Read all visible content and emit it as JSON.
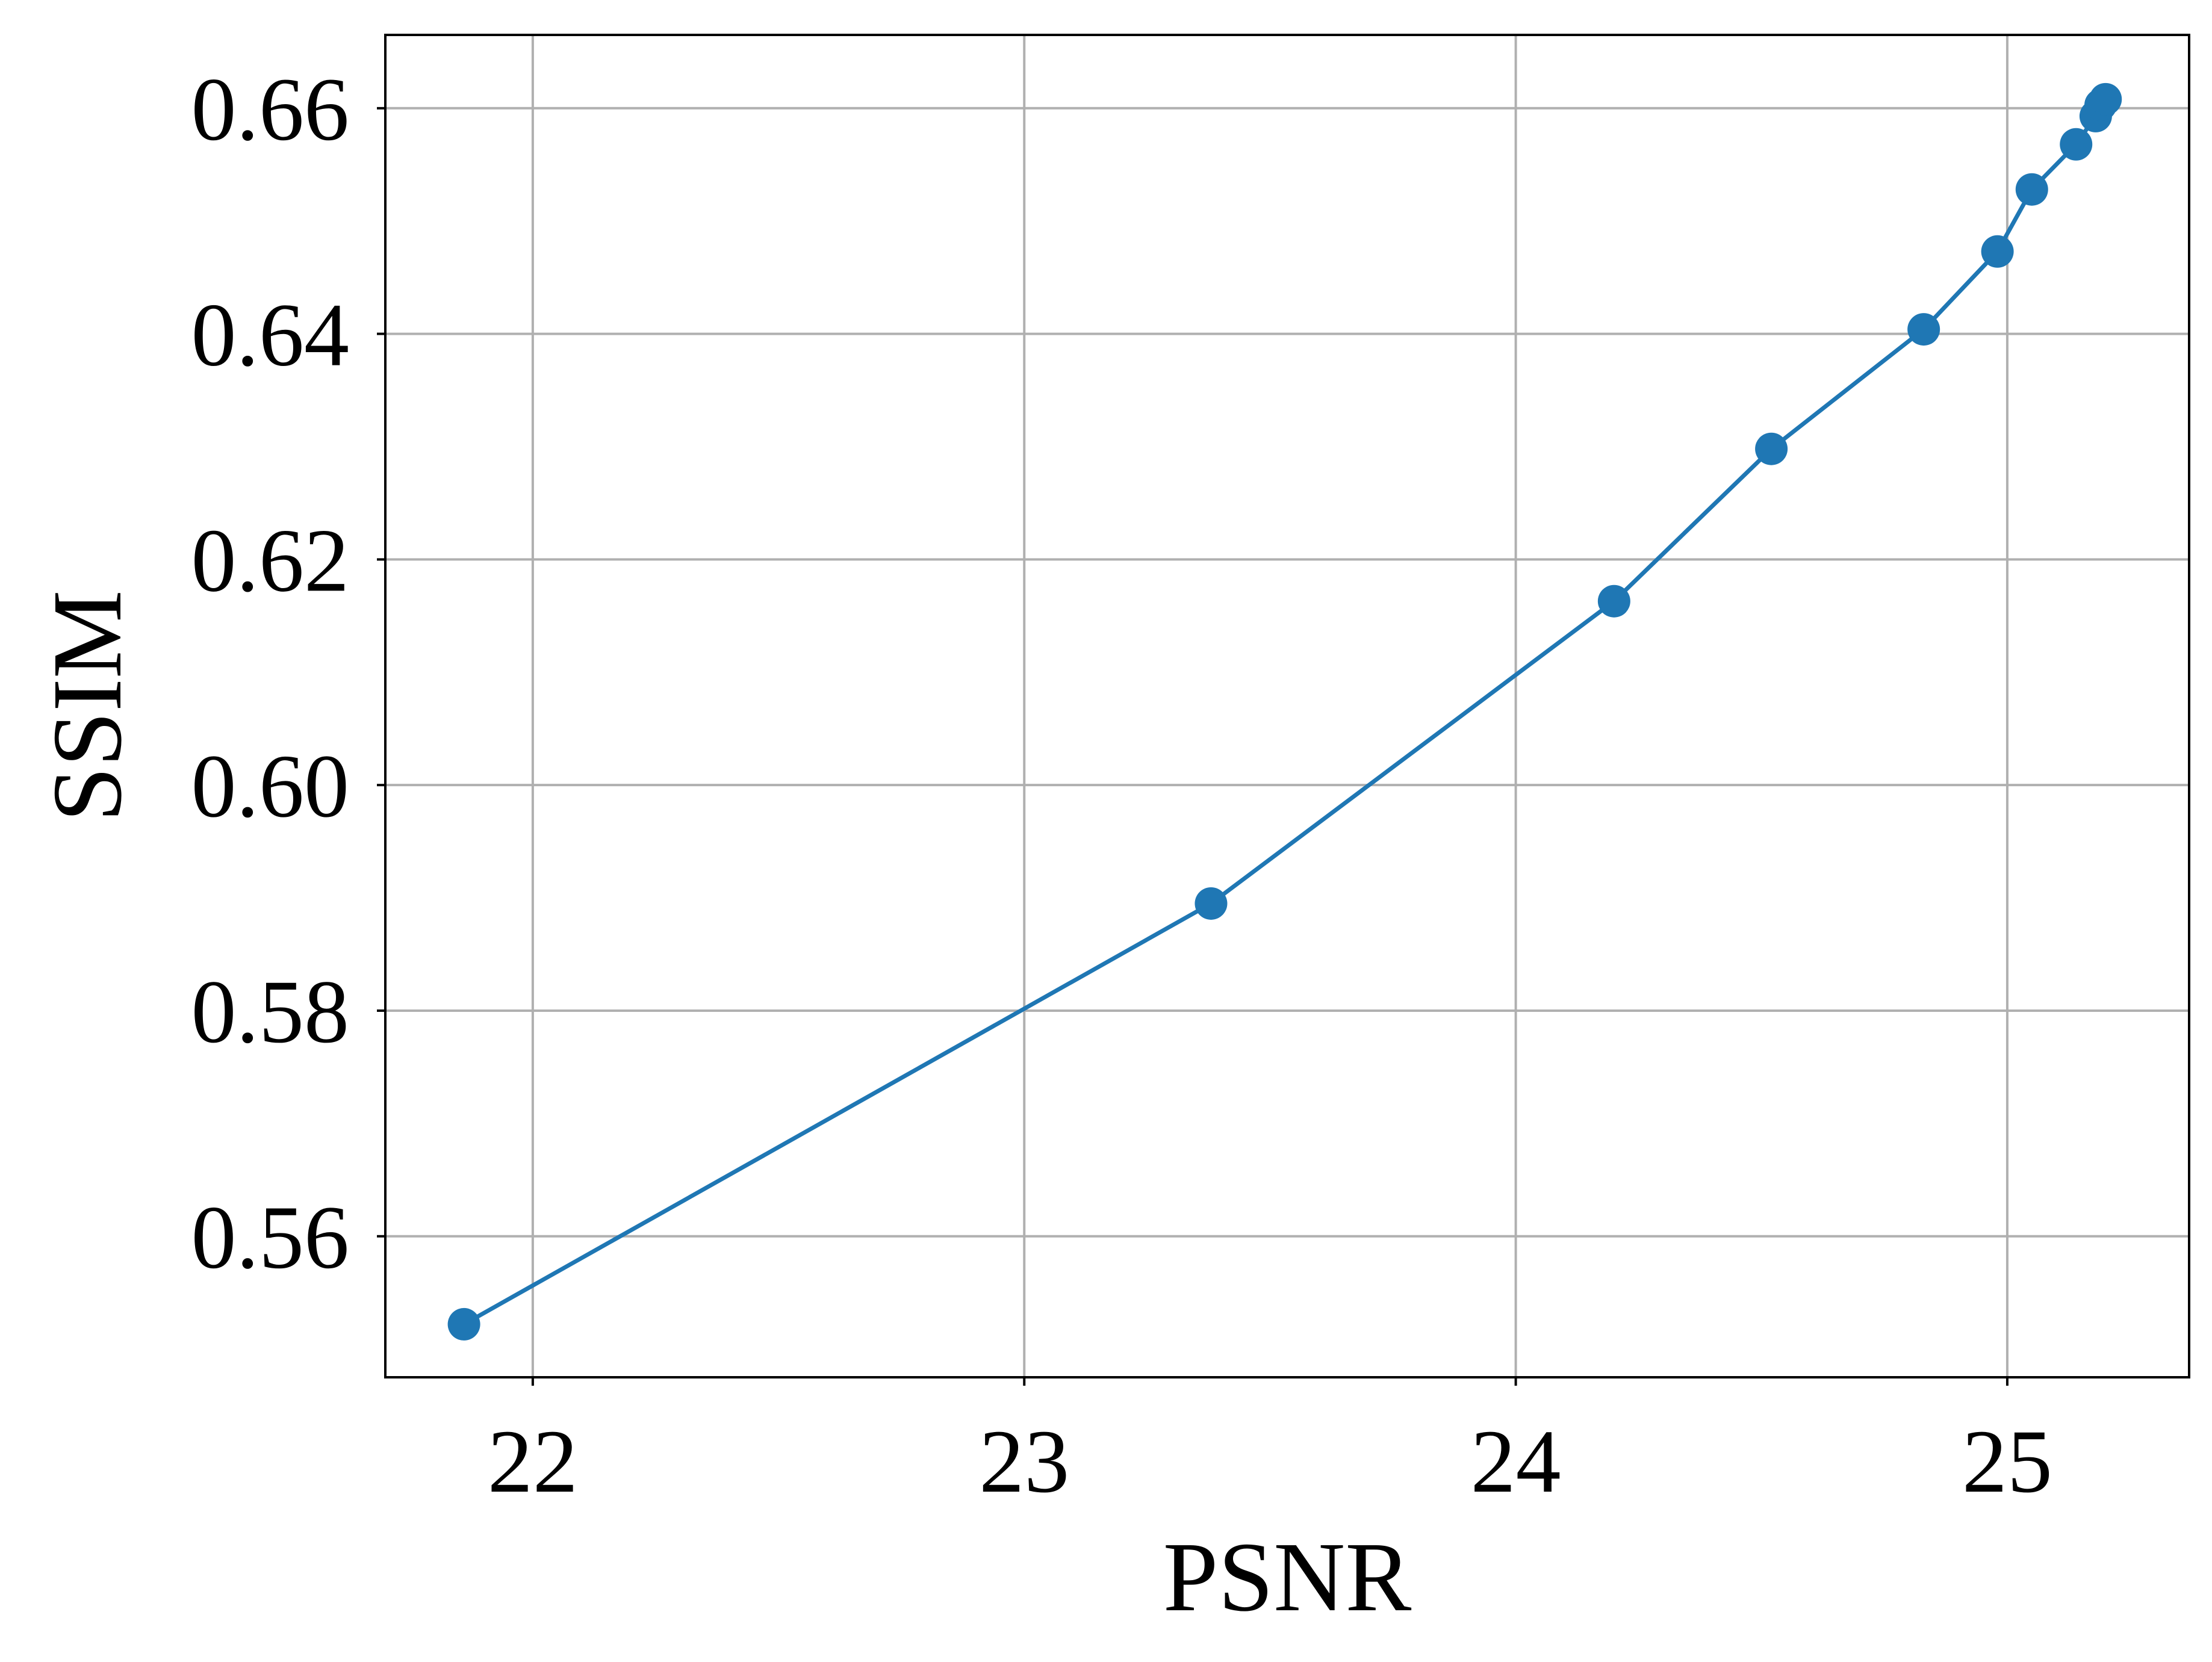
{
  "chart_data": {
    "type": "line",
    "xlabel": "PSNR",
    "ylabel": "SSIM",
    "xlim": [
      21.7,
      25.37
    ],
    "ylim": [
      0.5475,
      0.6665
    ],
    "xticks": [
      22,
      23,
      24,
      25
    ],
    "xtick_labels": [
      "22",
      "23",
      "24",
      "25"
    ],
    "yticks": [
      0.56,
      0.58,
      0.6,
      0.62,
      0.64,
      0.66
    ],
    "ytick_labels": [
      "0.56",
      "0.58",
      "0.60",
      "0.62",
      "0.64",
      "0.66"
    ],
    "grid": true,
    "color": "#1f77b4",
    "series": [
      {
        "x": [
          21.86,
          23.38,
          24.2,
          24.52,
          24.83,
          24.98,
          25.05,
          25.14,
          25.18,
          25.19,
          25.2
        ],
        "y": [
          0.5522,
          0.5895,
          0.6163,
          0.6298,
          0.6404,
          0.6473,
          0.6528,
          0.6568,
          0.6593,
          0.6603,
          0.6608
        ]
      }
    ]
  }
}
